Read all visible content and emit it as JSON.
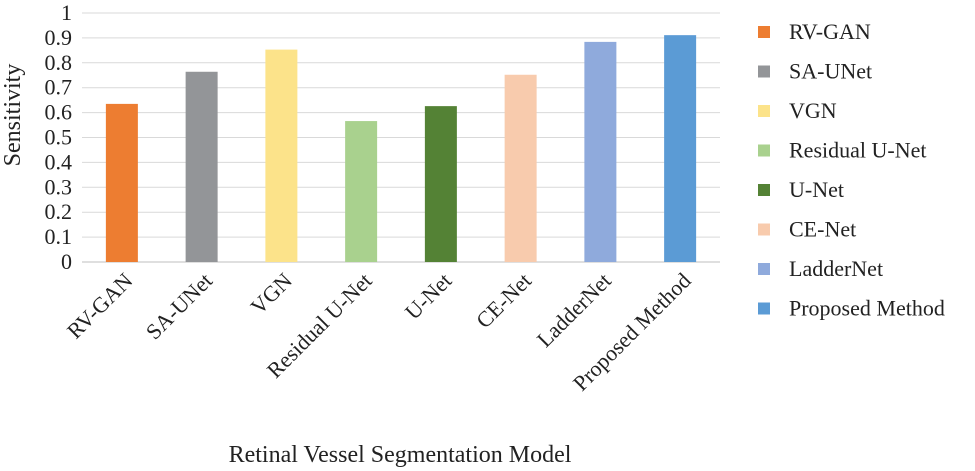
{
  "chart_data": {
    "type": "bar",
    "title": "",
    "xlabel": "Retinal Vessel Segmentation Model",
    "ylabel": "Sensitivity",
    "ylim": [
      0,
      1
    ],
    "yticks": [
      "0",
      "0.1",
      "0.2",
      "0.3",
      "0.4",
      "0.5",
      "0.6",
      "0.7",
      "0.8",
      "0.9",
      "1"
    ],
    "grid": true,
    "legend_position": "right",
    "categories": [
      "RV-GAN",
      "SA-UNet",
      "VGN",
      "Residual U-Net",
      "U-Net",
      "CE-Net",
      "LadderNet",
      "Proposed Method"
    ],
    "values": [
      0.635,
      0.764,
      0.853,
      0.566,
      0.626,
      0.752,
      0.884,
      0.911
    ],
    "colors": [
      "#ED7D31",
      "#939598",
      "#FCE38A",
      "#A9D18E",
      "#548235",
      "#F8CBAD",
      "#8FAADC",
      "#5B9BD5"
    ]
  }
}
